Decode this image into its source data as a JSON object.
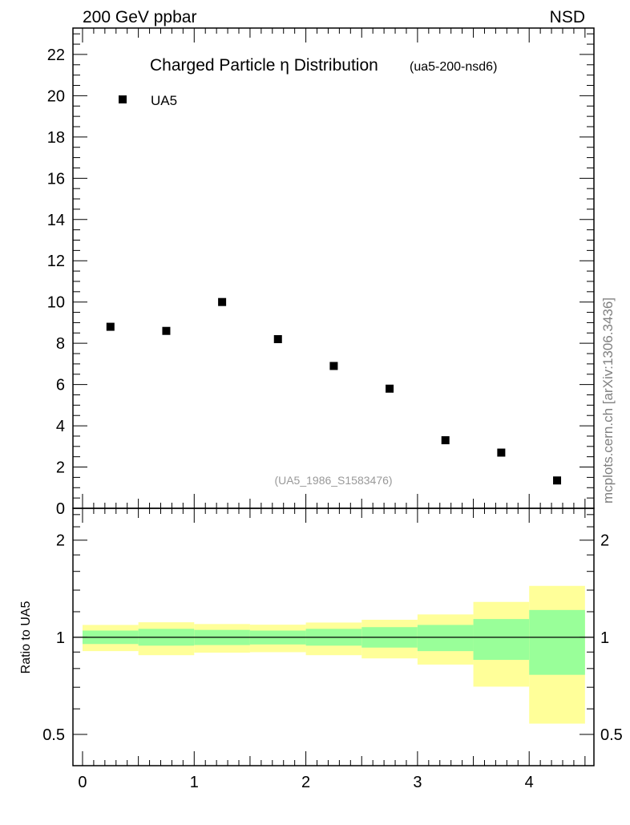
{
  "header": {
    "left": "200 GeV ppbar",
    "right": "NSD"
  },
  "side_label": "mcplots.cern.ch [arXiv:1306.3436]",
  "colors": {
    "marker": "#000000",
    "band_outer": "#ffff99",
    "band_inner": "#99ff99",
    "watermark": "#999999"
  },
  "chart_data": [
    {
      "type": "scatter",
      "title": "Charged Particle η Distribution",
      "subtitle": "(ua5-200-nsd6)",
      "watermark": "(UA5_1986_S1583476)",
      "legend": [
        {
          "name": "UA5",
          "marker": "square"
        }
      ],
      "legend_position": "top-left",
      "xlim": [
        -0.086,
        4.58
      ],
      "ylim": [
        0,
        23.28
      ],
      "yticks": [
        0,
        2,
        4,
        6,
        8,
        10,
        12,
        14,
        16,
        18,
        20,
        22
      ],
      "yticklabels": [
        "0",
        "2",
        "4",
        "6",
        "8",
        "10",
        "12",
        "14",
        "16",
        "18",
        "20",
        "22"
      ],
      "series": [
        {
          "name": "UA5",
          "x": [
            0.25,
            0.75,
            1.25,
            1.75,
            2.25,
            2.75,
            3.25,
            3.75,
            4.25
          ],
          "y": [
            8.8,
            8.6,
            10.0,
            8.2,
            6.9,
            5.8,
            3.3,
            2.7,
            1.35
          ]
        }
      ]
    },
    {
      "type": "area",
      "ylabel": "Ratio to UA5",
      "yscale": "log",
      "ylim": [
        0.4,
        2.51
      ],
      "xlim": [
        -0.086,
        4.58
      ],
      "yticks": [
        0.5,
        1,
        2
      ],
      "yticklabels": [
        "0.5",
        "1",
        "2"
      ],
      "xticks": [
        0,
        1,
        2,
        3,
        4
      ],
      "xticklabels": [
        "0",
        "1",
        "2",
        "3",
        "4"
      ],
      "bin_edges": [
        0,
        0.5,
        1,
        1.5,
        2,
        2.5,
        3,
        3.5,
        4,
        4.5
      ],
      "reference_line": 1,
      "bands": {
        "outer_upper": [
          1.092,
          1.113,
          1.099,
          1.094,
          1.111,
          1.133,
          1.177,
          1.287,
          1.443
        ],
        "inner_upper": [
          1.049,
          1.062,
          1.054,
          1.049,
          1.062,
          1.075,
          1.092,
          1.139,
          1.215
        ],
        "inner_lower": [
          0.953,
          0.942,
          0.946,
          0.95,
          0.942,
          0.929,
          0.906,
          0.851,
          0.765
        ],
        "outer_lower": [
          0.906,
          0.88,
          0.896,
          0.899,
          0.88,
          0.86,
          0.823,
          0.703,
          0.54
        ]
      }
    }
  ]
}
